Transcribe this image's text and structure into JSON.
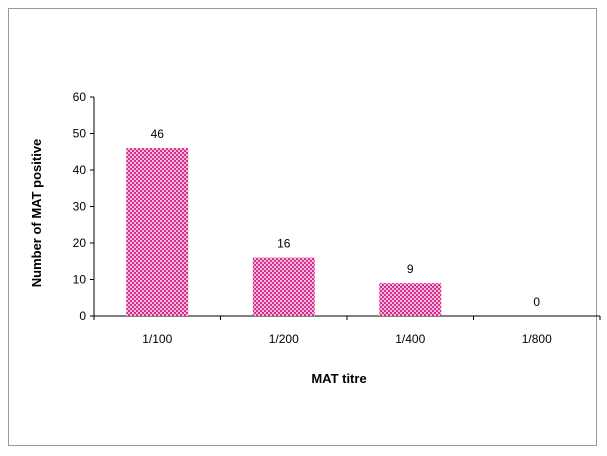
{
  "chart_data": {
    "type": "bar",
    "categories": [
      "1/100",
      "1/200",
      "1/400",
      "1/800"
    ],
    "values": [
      46,
      16,
      9,
      0
    ],
    "data_labels": [
      "46",
      "16",
      "9",
      "0"
    ],
    "title": "",
    "xlabel": "MAT titre",
    "ylabel": "Number of MAT positive",
    "ylim": [
      0,
      60
    ],
    "yticks": [
      "0",
      "10",
      "20",
      "30",
      "40",
      "50",
      "60"
    ],
    "grid": false,
    "legend": "none",
    "colors": {
      "bar_fill": "#d6308f",
      "bar_pattern": "#f3b8da",
      "axis": "#000000",
      "frame": "#9a9a9a"
    }
  }
}
